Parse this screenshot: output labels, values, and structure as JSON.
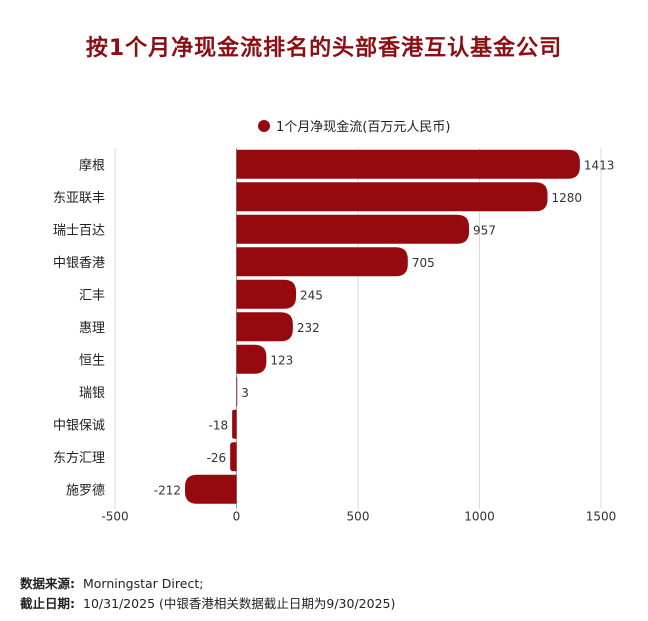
{
  "title": "按1个月净现金流排名的头部香港互认基金公司",
  "legend": {
    "label": "1个月净现金流(百万元人民币)"
  },
  "colors": {
    "bar": "#960a0f",
    "title": "#8c0d12",
    "grid": "#d9d9d9",
    "axis": "#999999"
  },
  "chart_data": {
    "type": "bar",
    "orientation": "horizontal",
    "title": "按1个月净现金流排名的头部香港互认基金公司",
    "categories": [
      "摩根",
      "东亚联丰",
      "瑞士百达",
      "中银香港",
      "汇丰",
      "惠理",
      "恒生",
      "瑞银",
      "中银保诚",
      "东方汇理",
      "施罗德"
    ],
    "series": [
      {
        "name": "1个月净现金流(百万元人民币)",
        "values": [
          1413,
          1280,
          957,
          705,
          245,
          232,
          123,
          3,
          -18,
          -26,
          -212
        ]
      }
    ],
    "xlim": [
      -500,
      1500
    ],
    "xticks": [
      -500,
      0,
      500,
      1000,
      1500
    ],
    "xtick_labels": [
      "-500",
      "0",
      "500",
      "1000",
      "1500"
    ],
    "xlabel": "",
    "ylabel": "",
    "grid": true,
    "legend_position": "top-center"
  },
  "source": {
    "line1_label": "数据来源:",
    "line1_text": "Morningstar Direct;",
    "line2_label": "截止日期:",
    "line2_text": "10/31/2025 (中银香港相关数据截止日期为9/30/2025)"
  }
}
